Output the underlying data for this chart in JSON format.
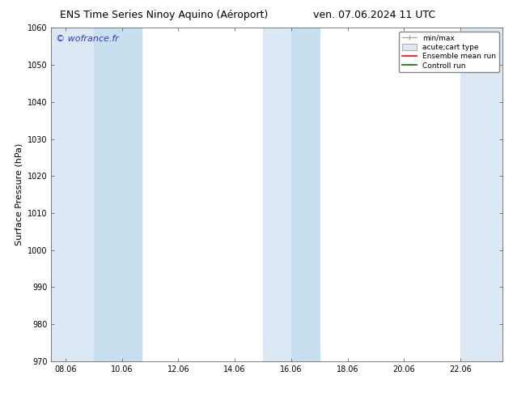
{
  "title_left": "ENS Time Series Ninoy Aquino (Aéroport)",
  "title_right": "ven. 07.06.2024 11 UTC",
  "ylabel": "Surface Pressure (hPa)",
  "ylim": [
    970,
    1060
  ],
  "yticks": [
    970,
    980,
    990,
    1000,
    1010,
    1020,
    1030,
    1040,
    1050,
    1060
  ],
  "xlim_min": 7.5,
  "xlim_max": 23.5,
  "xtick_labels": [
    "08.06",
    "10.06",
    "12.06",
    "14.06",
    "16.06",
    "18.06",
    "20.06",
    "22.06"
  ],
  "xtick_positions": [
    8.0,
    10.0,
    12.0,
    14.0,
    16.0,
    18.0,
    20.0,
    22.0
  ],
  "watermark": "© wofrance.fr",
  "watermark_color": "#3333bb",
  "bg_color": "#ffffff",
  "plot_bg_color": "#ffffff",
  "shaded_bands": [
    {
      "x_start": 7.5,
      "x_end": 9.0,
      "color": "#dce9f5"
    },
    {
      "x_start": 9.0,
      "x_end": 10.7,
      "color": "#c8dff0"
    },
    {
      "x_start": 15.0,
      "x_end": 16.0,
      "color": "#dce9f5"
    },
    {
      "x_start": 16.0,
      "x_end": 17.0,
      "color": "#c8dff0"
    },
    {
      "x_start": 22.0,
      "x_end": 23.5,
      "color": "#dce9f5"
    }
  ],
  "legend_minmax_color": "#aaaaaa",
  "legend_box_facecolor": "#dce9f5",
  "legend_box_edgecolor": "#aaaaaa",
  "legend_mean_color": "#ff0000",
  "legend_control_color": "#007700",
  "title_fontsize": 9,
  "tick_fontsize": 7,
  "ylabel_fontsize": 8
}
